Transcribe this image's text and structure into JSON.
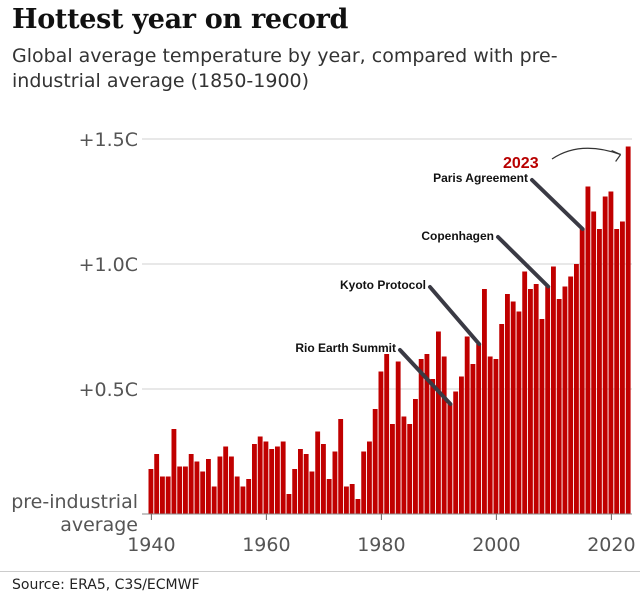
{
  "header": {
    "title": "Hottest year on record",
    "subtitle": "Global average temperature by year, compared with pre-industrial average (1850-1900)"
  },
  "footer": {
    "source": "Source: ERA5, C3S/ECMWF"
  },
  "colors": {
    "bar": "#c00000",
    "highlight": "#b80000",
    "axis_text": "#555555",
    "grid": "#d0d0d0",
    "annotation_line": "#3a3a44"
  },
  "chart_data": {
    "type": "bar",
    "title": "Hottest year on record",
    "subtitle": "Global average temperature by year, compared with pre-industrial average (1850-1900)",
    "ylim": [
      0,
      1.5
    ],
    "baseline_label": [
      "pre-industrial",
      "average"
    ],
    "y_ticks": [
      {
        "value": 0.5,
        "label": "+0.5C"
      },
      {
        "value": 1.0,
        "label": "+1.0C"
      },
      {
        "value": 1.5,
        "label": "+1.5C"
      }
    ],
    "x_ticks": [
      1940,
      1960,
      1980,
      2000,
      2020
    ],
    "grid": true,
    "highlight": {
      "year": 2023,
      "label": "2023"
    },
    "annotations": [
      {
        "label": "Rio Earth Summit",
        "year": 1992
      },
      {
        "label": "Kyoto Protocol",
        "year": 1997
      },
      {
        "label": "Copenhagen",
        "year": 2009
      },
      {
        "label": "Paris Agreement",
        "year": 2015
      }
    ],
    "years": [
      1940,
      1941,
      1942,
      1943,
      1944,
      1945,
      1946,
      1947,
      1948,
      1949,
      1950,
      1951,
      1952,
      1953,
      1954,
      1955,
      1956,
      1957,
      1958,
      1959,
      1960,
      1961,
      1962,
      1963,
      1964,
      1965,
      1966,
      1967,
      1968,
      1969,
      1970,
      1971,
      1972,
      1973,
      1974,
      1975,
      1976,
      1977,
      1978,
      1979,
      1980,
      1981,
      1982,
      1983,
      1984,
      1985,
      1986,
      1987,
      1988,
      1989,
      1990,
      1991,
      1992,
      1993,
      1994,
      1995,
      1996,
      1997,
      1998,
      1999,
      2000,
      2001,
      2002,
      2003,
      2004,
      2005,
      2006,
      2007,
      2008,
      2009,
      2010,
      2011,
      2012,
      2013,
      2014,
      2015,
      2016,
      2017,
      2018,
      2019,
      2020,
      2021,
      2022,
      2023
    ],
    "values": [
      0.18,
      0.24,
      0.15,
      0.15,
      0.34,
      0.19,
      0.19,
      0.24,
      0.21,
      0.17,
      0.22,
      0.11,
      0.23,
      0.27,
      0.23,
      0.15,
      0.11,
      0.14,
      0.28,
      0.31,
      0.29,
      0.26,
      0.27,
      0.29,
      0.08,
      0.18,
      0.26,
      0.24,
      0.17,
      0.33,
      0.28,
      0.14,
      0.25,
      0.38,
      0.11,
      0.12,
      0.06,
      0.25,
      0.29,
      0.42,
      0.57,
      0.64,
      0.36,
      0.61,
      0.39,
      0.36,
      0.46,
      0.62,
      0.64,
      0.54,
      0.73,
      0.63,
      0.44,
      0.49,
      0.55,
      0.71,
      0.6,
      0.68,
      0.9,
      0.63,
      0.62,
      0.76,
      0.88,
      0.85,
      0.81,
      0.97,
      0.9,
      0.92,
      0.78,
      0.91,
      0.99,
      0.86,
      0.91,
      0.95,
      1.0,
      1.14,
      1.31,
      1.21,
      1.14,
      1.27,
      1.29,
      1.14,
      1.17,
      1.47
    ]
  }
}
